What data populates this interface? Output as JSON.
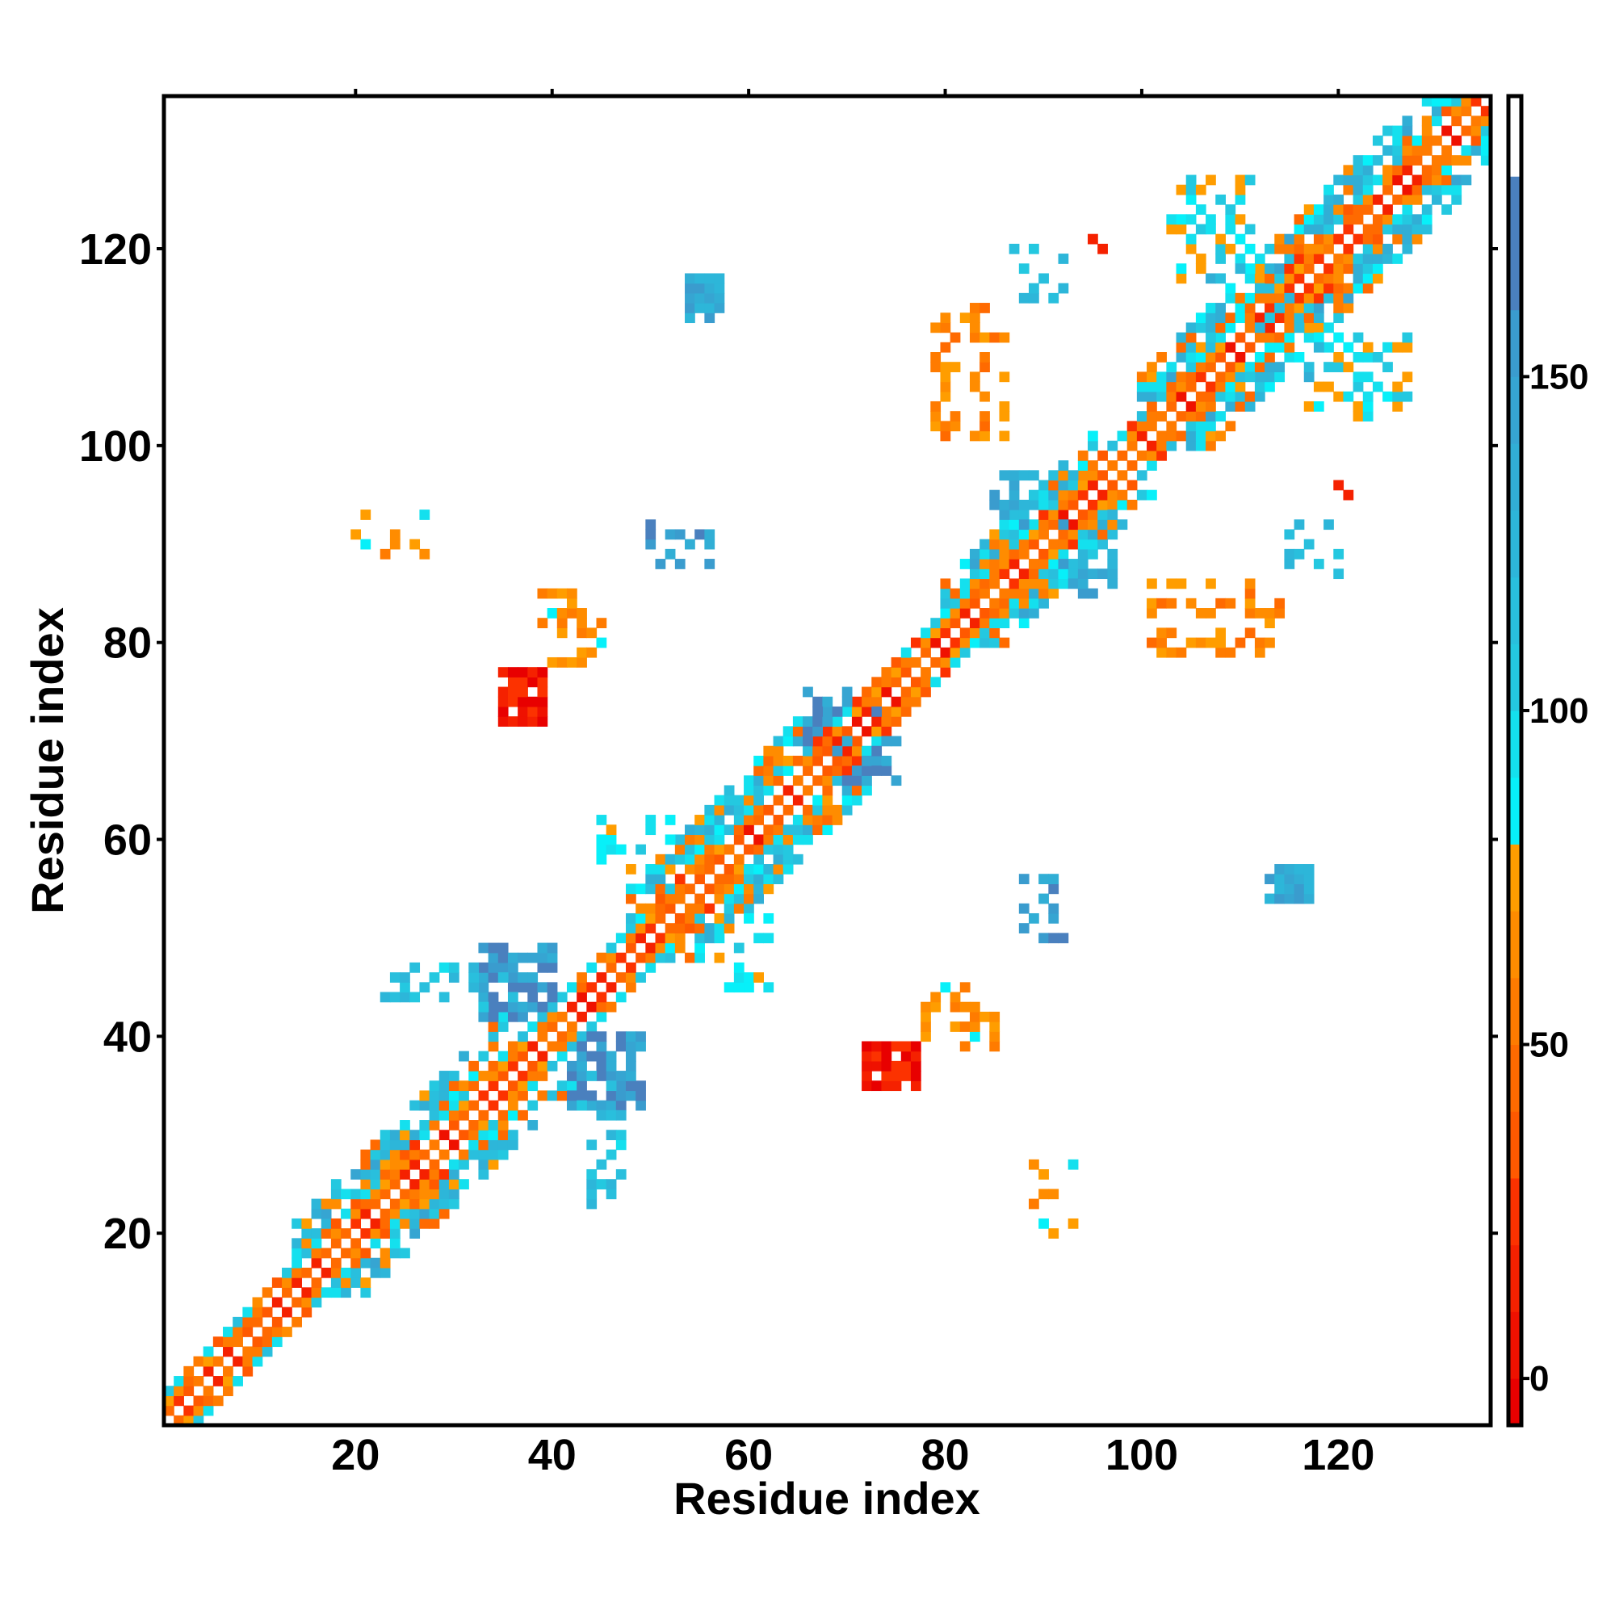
{
  "chart_data": {
    "type": "heatmap",
    "title": "",
    "xlabel": "Residue index",
    "ylabel": "Residue index",
    "xlim": [
      0.5,
      135.5
    ],
    "ylim": [
      0.5,
      135.5
    ],
    "x_ticks": [
      20,
      40,
      60,
      80,
      100,
      120
    ],
    "y_ticks": [
      20,
      40,
      60,
      80,
      100,
      120
    ],
    "symmetric": true,
    "colorbar": {
      "range": [
        -7,
        192
      ],
      "ticks": [
        0,
        50,
        100,
        150
      ],
      "empty_above": 180,
      "bin_size": 10
    },
    "diagonal_band": {
      "segments": [
        {
          "from": 1,
          "to": 14,
          "width": 3
        },
        {
          "from": 14,
          "to": 36,
          "width": 7
        },
        {
          "from": 36,
          "to": 48,
          "width": 3
        },
        {
          "from": 48,
          "to": 66,
          "width": 7
        },
        {
          "from": 66,
          "to": 80,
          "width": 3
        },
        {
          "from": 80,
          "to": 96,
          "width": 6
        },
        {
          "from": 96,
          "to": 100,
          "width": 3
        },
        {
          "from": 100,
          "to": 135,
          "width": 7
        }
      ]
    },
    "contact_clusters": [
      {
        "x": [
          54,
          57
        ],
        "y": [
          113,
          117
        ],
        "value": 140,
        "density": 0.9
      },
      {
        "x": [
          35,
          39
        ],
        "y": [
          72,
          77
        ],
        "value": 8,
        "density": 0.9
      },
      {
        "x": [
          39,
          45
        ],
        "y": [
          78,
          85
        ],
        "value": 70,
        "density": 0.45
      },
      {
        "x": [
          20,
          27
        ],
        "y": [
          89,
          93
        ],
        "value": 75,
        "density": 0.35
      },
      {
        "x": [
          50,
          56
        ],
        "y": [
          88,
          92
        ],
        "value": 150,
        "density": 0.35
      },
      {
        "x": [
          79,
          86
        ],
        "y": [
          101,
          114
        ],
        "value": 60,
        "density": 0.35
      },
      {
        "x": [
          87,
          93
        ],
        "y": [
          115,
          120
        ],
        "value": 120,
        "density": 0.3
      },
      {
        "x": [
          95,
          96
        ],
        "y": [
          120,
          122
        ],
        "value": 15,
        "density": 0.6
      },
      {
        "x": [
          103,
          111
        ],
        "y": [
          117,
          127
        ],
        "value": 90,
        "density": 0.4
      },
      {
        "x": [
          33,
          40
        ],
        "y": [
          42,
          49
        ],
        "value": 155,
        "density": 0.75
      },
      {
        "x": [
          23,
          36
        ],
        "y": [
          43,
          47
        ],
        "value": 110,
        "density": 0.35
      },
      {
        "x": [
          66,
          74
        ],
        "y": [
          67,
          75
        ],
        "value": 150,
        "density": 0.55
      },
      {
        "x": [
          45,
          52
        ],
        "y": [
          57,
          62
        ],
        "value": 85,
        "density": 0.35
      },
      {
        "x": [
          85,
          93
        ],
        "y": [
          90,
          97
        ],
        "value": 140,
        "density": 0.5
      },
      {
        "x": [
          107,
          115
        ],
        "y": [
          110,
          118
        ],
        "value": 120,
        "density": 0.5
      }
    ]
  }
}
